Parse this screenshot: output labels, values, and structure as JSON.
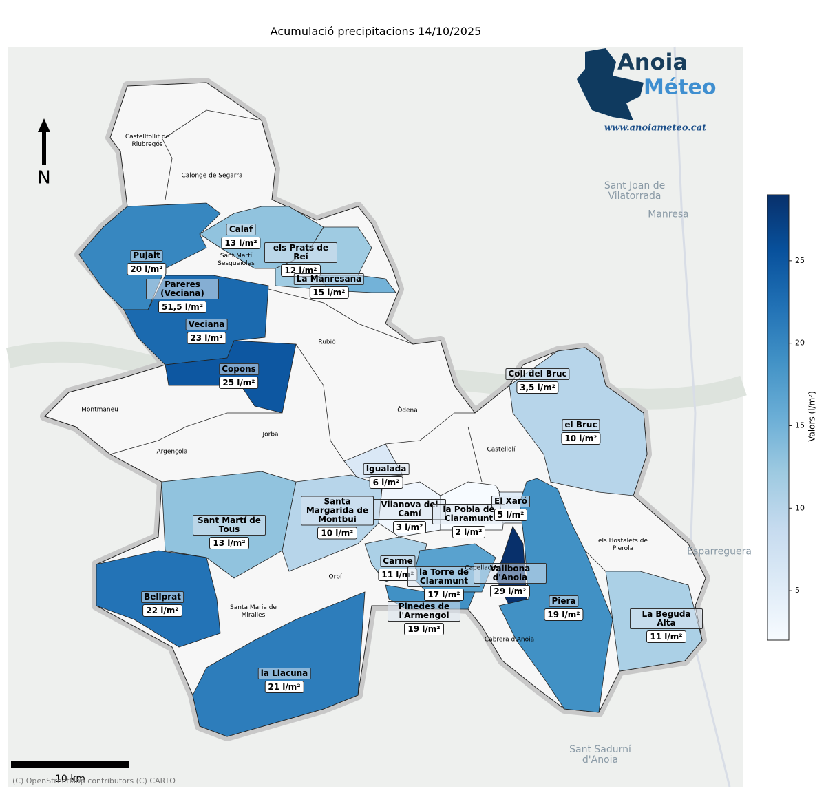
{
  "title": "Acumulació precipitacions 14/10/2025",
  "colorbar": {
    "label": "Valors (l/m²)",
    "lim": [
      2,
      29
    ],
    "ticks": [
      5,
      10,
      15,
      20,
      25
    ]
  },
  "stations": [
    {
      "name": "Calaf",
      "value": 13,
      "value_label": "13 l/m²"
    },
    {
      "name": "Pujalt",
      "value": 20,
      "value_label": "20 l/m²"
    },
    {
      "name": "els Prats de Rei",
      "value": 12,
      "value_label": "12 l/m²"
    },
    {
      "name": "La Manresana",
      "value": 15,
      "value_label": "15 l/m²"
    },
    {
      "name": "Pareres (Veciana)",
      "value": 51.5,
      "value_label": "51,5 l/m²"
    },
    {
      "name": "Veciana",
      "value": 23,
      "value_label": "23 l/m²"
    },
    {
      "name": "Copons",
      "value": 25,
      "value_label": "25 l/m²"
    },
    {
      "name": "Coll del Bruc",
      "value": 3.5,
      "value_label": "3,5 l/m²"
    },
    {
      "name": "el Bruc",
      "value": 10,
      "value_label": "10 l/m²"
    },
    {
      "name": "Igualada",
      "value": 6,
      "value_label": "6 l/m²"
    },
    {
      "name": "Sant Martí de Tous",
      "value": 13,
      "value_label": "13 l/m²"
    },
    {
      "name": "Santa Margarida de Montbui",
      "value": 10,
      "value_label": "10 l/m²"
    },
    {
      "name": "Vilanova del Camí",
      "value": 3,
      "value_label": "3 l/m²"
    },
    {
      "name": "la Pobla de Claramunt",
      "value": 2,
      "value_label": "2 l/m²"
    },
    {
      "name": "El Xaró",
      "value": 5,
      "value_label": "5 l/m²"
    },
    {
      "name": "Carme",
      "value": 11,
      "value_label": "11 l/m²"
    },
    {
      "name": "la Torre de Claramunt",
      "value": 17,
      "value_label": "17 l/m²"
    },
    {
      "name": "Pinedes de l'Armengol",
      "value": 19,
      "value_label": "19 l/m²"
    },
    {
      "name": "Vallbona d'Anoia",
      "value": 29,
      "value_label": "29 l/m²"
    },
    {
      "name": "Piera",
      "value": 19,
      "value_label": "19 l/m²"
    },
    {
      "name": "Bellprat",
      "value": 22,
      "value_label": "22 l/m²"
    },
    {
      "name": "la Llacuna",
      "value": 21,
      "value_label": "21 l/m²"
    },
    {
      "name": "La Beguda Alta",
      "value": 11,
      "value_label": "11 l/m²"
    }
  ],
  "municipalities": [
    "Castellfollit de Riubregós",
    "Calonge de Segarra",
    "Sant Martí Sesgueioles",
    "Rubió",
    "Òdena",
    "Montmaneu",
    "Jorba",
    "Argençola",
    "Castellolí",
    "els Hostalets de Pierola",
    "Orpí",
    "Capellades",
    "Santa Maria de Miralles",
    "Cabrera d'Anoia"
  ],
  "places": [
    "Sant Joan de Vilatorrada",
    "Manresa",
    "Esparreguera",
    "Sant Sadurní d'Anoia"
  ],
  "logo": {
    "line1": "Anoia",
    "line2": "Méteo",
    "url": "www.anoiameteo.cat"
  },
  "north": "N",
  "scale_bar": "10 km",
  "attribution": "(C) OpenStreetMap contributors (C) CARTO"
}
